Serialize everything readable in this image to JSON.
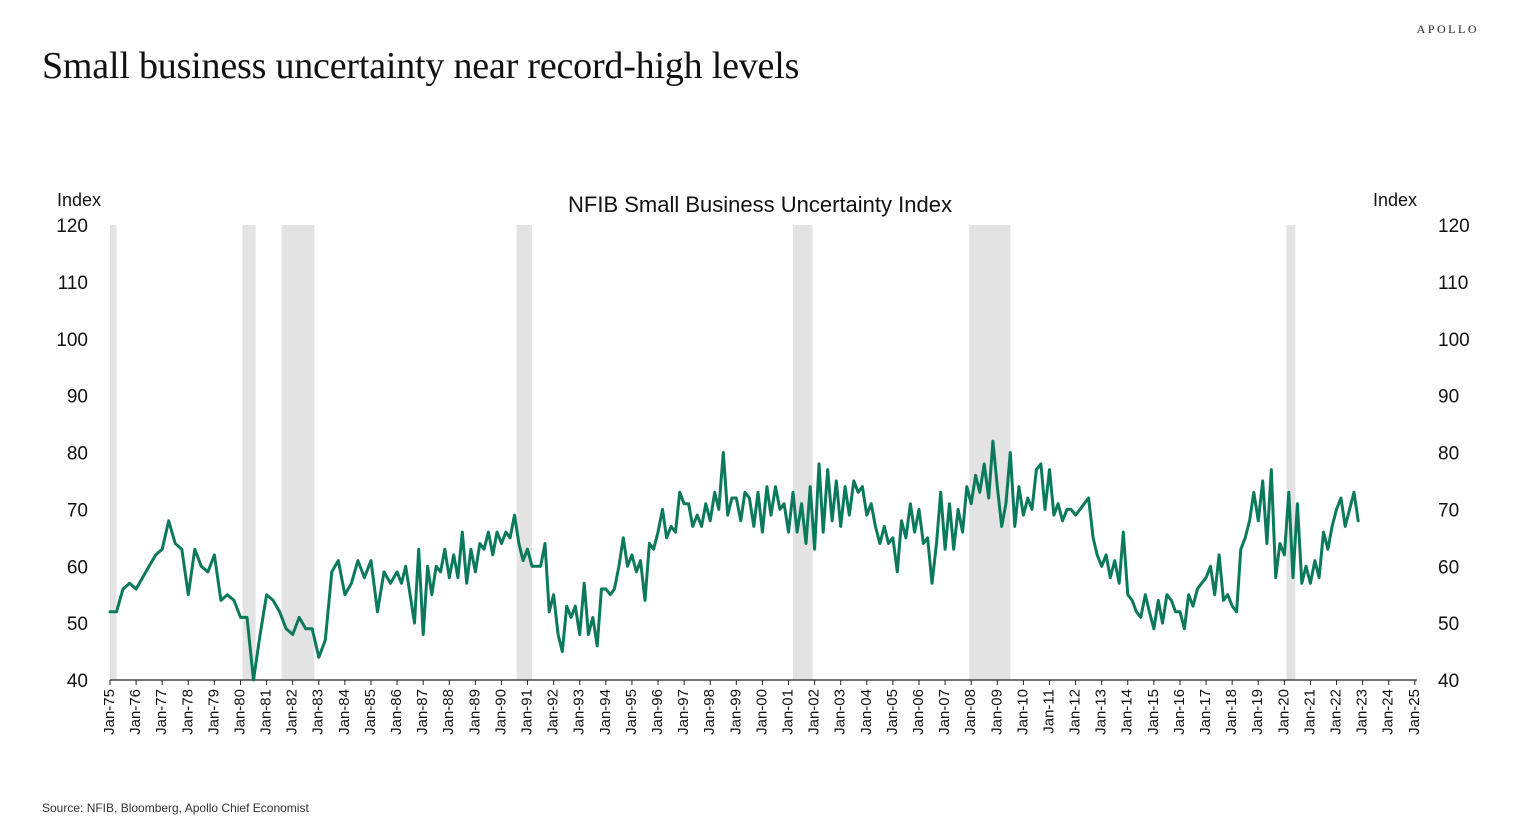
{
  "header": {
    "logo": "APOLLO",
    "title": "Small business uncertainty near record-high levels"
  },
  "footer": {
    "source": "Source: NFIB, Bloomberg, Apollo Chief Economist"
  },
  "colors": {
    "series": "#0b7a5c",
    "recession": "#e3e3e3",
    "axis": "#222222"
  },
  "chart_data": {
    "type": "line",
    "title": "NFIB Small Business Uncertainty Index",
    "ylabel_left": "Index",
    "ylabel_right": "Index",
    "ylim": [
      40,
      120
    ],
    "yticks": [
      40,
      50,
      60,
      70,
      80,
      90,
      100,
      110,
      120
    ],
    "xlim": [
      1975.0,
      2025.083
    ],
    "xtick_labels": [
      "Jan-75",
      "Jan-76",
      "Jan-77",
      "Jan-78",
      "Jan-79",
      "Jan-80",
      "Jan-81",
      "Jan-82",
      "Jan-83",
      "Jan-84",
      "Jan-85",
      "Jan-86",
      "Jan-87",
      "Jan-88",
      "Jan-89",
      "Jan-90",
      "Jan-91",
      "Jan-92",
      "Jan-93",
      "Jan-94",
      "Jan-95",
      "Jan-96",
      "Jan-97",
      "Jan-98",
      "Jan-99",
      "Jan-00",
      "Jan-01",
      "Jan-02",
      "Jan-03",
      "Jan-04",
      "Jan-05",
      "Jan-06",
      "Jan-07",
      "Jan-08",
      "Jan-09",
      "Jan-10",
      "Jan-11",
      "Jan-12",
      "Jan-13",
      "Jan-14",
      "Jan-15",
      "Jan-16",
      "Jan-17",
      "Jan-18",
      "Jan-19",
      "Jan-20",
      "Jan-21",
      "Jan-22",
      "Jan-23",
      "Jan-24",
      "Jan-25"
    ],
    "legend": "none",
    "grid": false,
    "recessions": [
      [
        1975.0,
        1975.25
      ],
      [
        1980.08,
        1980.58
      ],
      [
        1981.58,
        1982.83
      ],
      [
        1990.58,
        1991.17
      ],
      [
        2001.17,
        2001.92
      ],
      [
        2007.92,
        2009.5
      ],
      [
        2020.08,
        2020.42
      ]
    ],
    "series": [
      {
        "points": [
          [
            1975.0,
            52
          ],
          [
            1975.25,
            52
          ],
          [
            1975.5,
            56
          ],
          [
            1975.75,
            57
          ],
          [
            1976.0,
            56
          ],
          [
            1976.25,
            58
          ],
          [
            1976.5,
            60
          ],
          [
            1976.75,
            62
          ],
          [
            1977.0,
            63
          ],
          [
            1977.25,
            68
          ],
          [
            1977.5,
            64
          ],
          [
            1977.75,
            63
          ],
          [
            1978.0,
            55
          ],
          [
            1978.25,
            63
          ],
          [
            1978.5,
            60
          ],
          [
            1978.75,
            59
          ],
          [
            1979.0,
            62
          ],
          [
            1979.25,
            54
          ],
          [
            1979.5,
            55
          ],
          [
            1979.75,
            54
          ],
          [
            1980.0,
            51
          ],
          [
            1980.25,
            51
          ],
          [
            1980.5,
            40
          ],
          [
            1980.75,
            48
          ],
          [
            1981.0,
            55
          ],
          [
            1981.25,
            54
          ],
          [
            1981.5,
            52
          ],
          [
            1981.75,
            49
          ],
          [
            1982.0,
            48
          ],
          [
            1982.25,
            51
          ],
          [
            1982.5,
            49
          ],
          [
            1982.75,
            49
          ],
          [
            1983.0,
            44
          ],
          [
            1983.25,
            47
          ],
          [
            1983.5,
            59
          ],
          [
            1983.75,
            61
          ],
          [
            1984.0,
            55
          ],
          [
            1984.25,
            57
          ],
          [
            1984.5,
            61
          ],
          [
            1984.75,
            58
          ],
          [
            1985.0,
            61
          ],
          [
            1985.25,
            52
          ],
          [
            1985.5,
            59
          ],
          [
            1985.75,
            57
          ],
          [
            1986.0,
            59
          ],
          [
            1986.17,
            57
          ],
          [
            1986.33,
            60
          ],
          [
            1986.5,
            55
          ],
          [
            1986.67,
            50
          ],
          [
            1986.83,
            63
          ],
          [
            1987.0,
            48
          ],
          [
            1987.17,
            60
          ],
          [
            1987.33,
            55
          ],
          [
            1987.5,
            60
          ],
          [
            1987.67,
            59
          ],
          [
            1987.83,
            63
          ],
          [
            1988.0,
            58
          ],
          [
            1988.17,
            62
          ],
          [
            1988.33,
            58
          ],
          [
            1988.5,
            66
          ],
          [
            1988.67,
            57
          ],
          [
            1988.83,
            63
          ],
          [
            1989.0,
            59
          ],
          [
            1989.17,
            64
          ],
          [
            1989.33,
            63
          ],
          [
            1989.5,
            66
          ],
          [
            1989.67,
            62
          ],
          [
            1989.83,
            66
          ],
          [
            1990.0,
            64
          ],
          [
            1990.17,
            66
          ],
          [
            1990.33,
            65
          ],
          [
            1990.5,
            69
          ],
          [
            1990.67,
            64
          ],
          [
            1990.83,
            61
          ],
          [
            1991.0,
            63
          ],
          [
            1991.17,
            60
          ],
          [
            1991.33,
            60
          ],
          [
            1991.5,
            60
          ],
          [
            1991.67,
            64
          ],
          [
            1991.83,
            52
          ],
          [
            1992.0,
            55
          ],
          [
            1992.17,
            48
          ],
          [
            1992.33,
            45
          ],
          [
            1992.5,
            53
          ],
          [
            1992.67,
            51
          ],
          [
            1992.83,
            53
          ],
          [
            1993.0,
            48
          ],
          [
            1993.17,
            57
          ],
          [
            1993.33,
            48
          ],
          [
            1993.5,
            51
          ],
          [
            1993.67,
            46
          ],
          [
            1993.83,
            56
          ],
          [
            1994.0,
            56
          ],
          [
            1994.17,
            55
          ],
          [
            1994.33,
            56
          ],
          [
            1994.5,
            60
          ],
          [
            1994.67,
            65
          ],
          [
            1994.83,
            60
          ],
          [
            1995.0,
            62
          ],
          [
            1995.17,
            59
          ],
          [
            1995.33,
            61
          ],
          [
            1995.5,
            54
          ],
          [
            1995.67,
            64
          ],
          [
            1995.83,
            63
          ],
          [
            1996.0,
            66
          ],
          [
            1996.17,
            70
          ],
          [
            1996.33,
            65
          ],
          [
            1996.5,
            67
          ],
          [
            1996.67,
            66
          ],
          [
            1996.83,
            73
          ],
          [
            1997.0,
            71
          ],
          [
            1997.17,
            71
          ],
          [
            1997.33,
            67
          ],
          [
            1997.5,
            69
          ],
          [
            1997.67,
            67
          ],
          [
            1997.83,
            71
          ],
          [
            1998.0,
            68
          ],
          [
            1998.17,
            73
          ],
          [
            1998.33,
            70
          ],
          [
            1998.5,
            80
          ],
          [
            1998.67,
            69
          ],
          [
            1998.83,
            72
          ],
          [
            1999.0,
            72
          ],
          [
            1999.17,
            68
          ],
          [
            1999.33,
            73
          ],
          [
            1999.5,
            72
          ],
          [
            1999.67,
            67
          ],
          [
            1999.83,
            73
          ],
          [
            2000.0,
            66
          ],
          [
            2000.17,
            74
          ],
          [
            2000.33,
            69
          ],
          [
            2000.5,
            74
          ],
          [
            2000.67,
            70
          ],
          [
            2000.83,
            71
          ],
          [
            2001.0,
            66
          ],
          [
            2001.17,
            73
          ],
          [
            2001.33,
            66
          ],
          [
            2001.5,
            71
          ],
          [
            2001.67,
            64
          ],
          [
            2001.83,
            74
          ],
          [
            2002.0,
            63
          ],
          [
            2002.17,
            78
          ],
          [
            2002.33,
            66
          ],
          [
            2002.5,
            77
          ],
          [
            2002.67,
            68
          ],
          [
            2002.83,
            75
          ],
          [
            2003.0,
            67
          ],
          [
            2003.17,
            74
          ],
          [
            2003.33,
            69
          ],
          [
            2003.5,
            75
          ],
          [
            2003.67,
            73
          ],
          [
            2003.83,
            74
          ],
          [
            2004.0,
            69
          ],
          [
            2004.17,
            71
          ],
          [
            2004.33,
            67
          ],
          [
            2004.5,
            64
          ],
          [
            2004.67,
            67
          ],
          [
            2004.83,
            64
          ],
          [
            2005.0,
            65
          ],
          [
            2005.17,
            59
          ],
          [
            2005.33,
            68
          ],
          [
            2005.5,
            65
          ],
          [
            2005.67,
            71
          ],
          [
            2005.83,
            66
          ],
          [
            2006.0,
            70
          ],
          [
            2006.17,
            64
          ],
          [
            2006.33,
            65
          ],
          [
            2006.5,
            57
          ],
          [
            2006.67,
            64
          ],
          [
            2006.83,
            73
          ],
          [
            2007.0,
            63
          ],
          [
            2007.17,
            71
          ],
          [
            2007.33,
            63
          ],
          [
            2007.5,
            70
          ],
          [
            2007.67,
            66
          ],
          [
            2007.83,
            74
          ],
          [
            2008.0,
            71
          ],
          [
            2008.17,
            76
          ],
          [
            2008.33,
            73
          ],
          [
            2008.5,
            78
          ],
          [
            2008.67,
            72
          ],
          [
            2008.83,
            82
          ],
          [
            2009.0,
            74
          ],
          [
            2009.17,
            67
          ],
          [
            2009.33,
            71
          ],
          [
            2009.5,
            80
          ],
          [
            2009.67,
            67
          ],
          [
            2009.83,
            74
          ],
          [
            2010.0,
            69
          ],
          [
            2010.17,
            72
          ],
          [
            2010.33,
            70
          ],
          [
            2010.5,
            77
          ],
          [
            2010.67,
            78
          ],
          [
            2010.83,
            70
          ],
          [
            2011.0,
            77
          ],
          [
            2011.17,
            69
          ],
          [
            2011.33,
            71
          ],
          [
            2011.5,
            68
          ],
          [
            2011.67,
            70
          ],
          [
            2011.83,
            70
          ],
          [
            2012.0,
            69
          ],
          [
            2012.17,
            70
          ],
          [
            2012.33,
            71
          ],
          [
            2012.5,
            72
          ],
          [
            2012.67,
            65
          ],
          [
            2012.83,
            62
          ],
          [
            2013.0,
            60
          ],
          [
            2013.17,
            62
          ],
          [
            2013.33,
            58
          ],
          [
            2013.5,
            61
          ],
          [
            2013.67,
            57
          ],
          [
            2013.83,
            66
          ],
          [
            2014.0,
            55
          ],
          [
            2014.17,
            54
          ],
          [
            2014.33,
            52
          ],
          [
            2014.5,
            51
          ],
          [
            2014.67,
            55
          ],
          [
            2014.83,
            52
          ],
          [
            2015.0,
            49
          ],
          [
            2015.17,
            54
          ],
          [
            2015.33,
            50
          ],
          [
            2015.5,
            55
          ],
          [
            2015.67,
            54
          ],
          [
            2015.83,
            52
          ],
          [
            2016.0,
            52
          ],
          [
            2016.17,
            49
          ],
          [
            2016.33,
            55
          ],
          [
            2016.5,
            53
          ],
          [
            2016.67,
            56
          ],
          [
            2016.83,
            57
          ],
          [
            2017.0,
            58
          ],
          [
            2017.17,
            60
          ],
          [
            2017.33,
            55
          ],
          [
            2017.5,
            62
          ],
          [
            2017.67,
            54
          ],
          [
            2017.83,
            55
          ],
          [
            2018.0,
            53
          ],
          [
            2018.17,
            52
          ],
          [
            2018.33,
            63
          ],
          [
            2018.5,
            65
          ],
          [
            2018.67,
            68
          ],
          [
            2018.83,
            73
          ],
          [
            2019.0,
            68
          ],
          [
            2019.17,
            75
          ],
          [
            2019.33,
            64
          ],
          [
            2019.5,
            77
          ],
          [
            2019.67,
            58
          ],
          [
            2019.83,
            64
          ],
          [
            2020.0,
            62
          ],
          [
            2020.17,
            73
          ],
          [
            2020.33,
            58
          ],
          [
            2020.5,
            71
          ],
          [
            2020.67,
            57
          ],
          [
            2020.83,
            60
          ],
          [
            2021.0,
            57
          ],
          [
            2021.17,
            61
          ],
          [
            2021.33,
            58
          ],
          [
            2021.5,
            66
          ],
          [
            2021.67,
            63
          ],
          [
            2021.83,
            67
          ],
          [
            2022.0,
            70
          ],
          [
            2022.17,
            72
          ],
          [
            2022.33,
            67
          ],
          [
            2022.5,
            70
          ],
          [
            2022.67,
            73
          ],
          [
            2022.83,
            68
          ]
        ]
      }
    ]
  }
}
